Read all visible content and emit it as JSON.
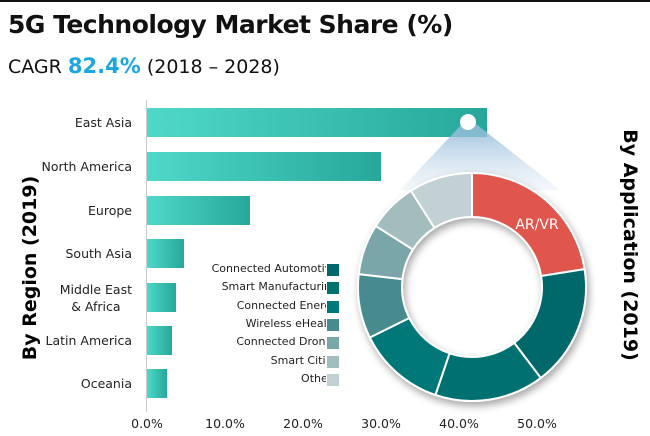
{
  "title": "5G Technology Market Share (%)",
  "subtitle": {
    "prefix": "CAGR",
    "value": "82.4%",
    "period": "(2018 – 2028)"
  },
  "accent_color": "#1aa7e0",
  "chart_data": [
    {
      "type": "bar",
      "orientation": "horizontal",
      "ylabel": "By Region (2019)",
      "categories": [
        "East Asia",
        "North America",
        "Europe",
        "South Asia",
        "Middle East\n& Africa",
        "Latin America",
        "Oceania"
      ],
      "values": [
        43.6,
        30.0,
        13.2,
        4.8,
        3.7,
        3.2,
        2.6
      ],
      "xlim": [
        0,
        50
      ],
      "xticks": [
        "0.0%",
        "10.0%",
        "20.0%",
        "30.0%",
        "40.0%",
        "50.0%"
      ],
      "bar_color": [
        "#4fd8c8",
        "#26a79a"
      ],
      "grid": false
    },
    {
      "type": "pie",
      "style": "donut",
      "label": "By Application (2019)",
      "slices": [
        {
          "name": "AR/VR",
          "value": 22.5,
          "color": "#e0574d",
          "labeled": true
        },
        {
          "name": "Connected Automotive",
          "value": 17.2,
          "color": "#00676a"
        },
        {
          "name": "Smart Manufacturing",
          "value": 15.5,
          "color": "#00716f"
        },
        {
          "name": "Connected Energy",
          "value": 12.5,
          "color": "#00787a"
        },
        {
          "name": "Wireless eHealth",
          "value": 9.1,
          "color": "#478b8e"
        },
        {
          "name": "Connected Drones",
          "value": 7.2,
          "color": "#7aa5a9"
        },
        {
          "name": "Smart Cities",
          "value": 7.0,
          "color": "#a3bcbe"
        },
        {
          "name": "Others",
          "value": 9.0,
          "color": "#c2d1d3"
        }
      ],
      "legend": "left"
    }
  ]
}
